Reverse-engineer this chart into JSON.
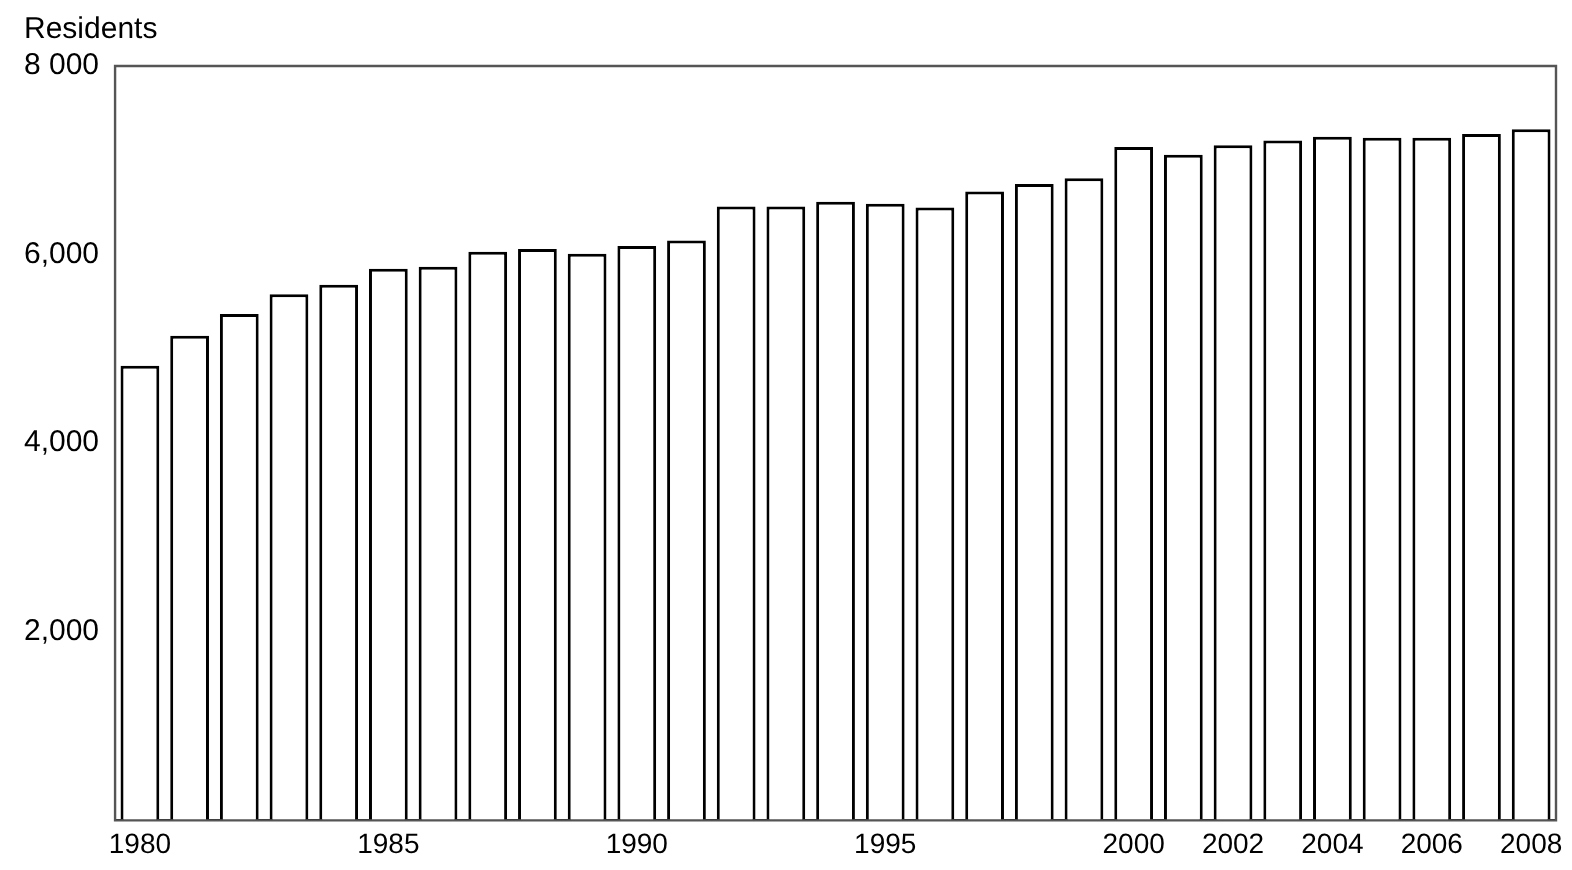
{
  "chart_data": {
    "type": "bar",
    "ylabel": "Residents",
    "categories": [
      "1980",
      null,
      null,
      null,
      null,
      "1985",
      null,
      null,
      null,
      null,
      "1990",
      null,
      null,
      null,
      null,
      "1995",
      null,
      null,
      null,
      null,
      "2000",
      null,
      "2002",
      null,
      "2004",
      null,
      "2006",
      null,
      "2008"
    ],
    "values": [
      4820,
      5140,
      5370,
      5580,
      5680,
      5850,
      5870,
      6030,
      6060,
      6010,
      6090,
      6150,
      6510,
      6510,
      6560,
      6540,
      6500,
      6670,
      6750,
      6810,
      7140,
      7060,
      7160,
      7210,
      7250,
      7240,
      7240,
      7280,
      7330
    ],
    "color": "#ffffff",
    "ylim": [
      0,
      8000
    ],
    "yticks": [
      {
        "value": 0,
        "label": null
      },
      {
        "value": 2000,
        "label": "2,000"
      },
      {
        "value": 4000,
        "label": "4,000"
      },
      {
        "value": 6000,
        "label": "6,000"
      },
      {
        "value": 8000,
        "label": "8 000"
      }
    ],
    "grid": false,
    "legend": false
  }
}
